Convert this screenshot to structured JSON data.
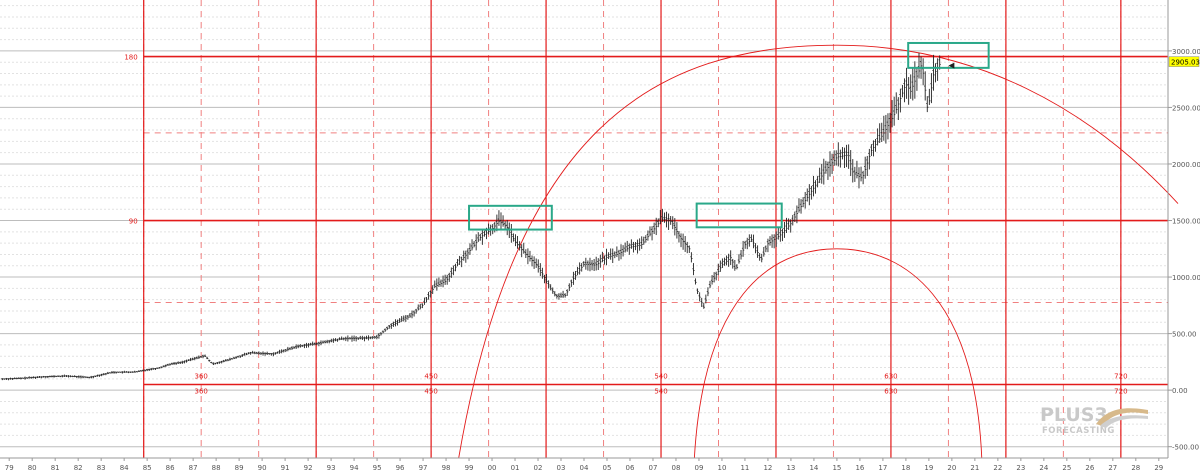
{
  "chart_data": {
    "type": "bar",
    "subtype": "ohlc-price-chart-with-gann-overlay",
    "title": "",
    "xlabel": "",
    "ylabel": "",
    "x_ticks": [
      "79",
      "80",
      "81",
      "82",
      "83",
      "84",
      "85",
      "86",
      "87",
      "88",
      "89",
      "90",
      "91",
      "92",
      "93",
      "94",
      "95",
      "96",
      "97",
      "98",
      "99",
      "00",
      "01",
      "02",
      "03",
      "04",
      "05",
      "06",
      "07",
      "08",
      "09",
      "10",
      "11",
      "12",
      "13",
      "14",
      "15",
      "16",
      "17",
      "18",
      "19",
      "20",
      "21",
      "22",
      "23",
      "24",
      "25",
      "26",
      "27",
      "28",
      "29"
    ],
    "x_range": [
      1978.6,
      2029.4
    ],
    "ylim": [
      -600,
      3450
    ],
    "y_ticks": [
      -500,
      0,
      500,
      1000,
      1500,
      2000,
      2500,
      3000
    ],
    "y_tick_labels": [
      "-500.00",
      "0.00",
      "500.00",
      "1000.00",
      "1500.00",
      "2000.00",
      "2500.00",
      "3000.00"
    ],
    "last_price": 2905.03,
    "last_price_label": "2905.03",
    "price_series": [
      {
        "x": 1978.7,
        "y": 98
      },
      {
        "x": 1979.5,
        "y": 104
      },
      {
        "x": 1980.5,
        "y": 118
      },
      {
        "x": 1981.5,
        "y": 125
      },
      {
        "x": 1982.5,
        "y": 112
      },
      {
        "x": 1983.5,
        "y": 158
      },
      {
        "x": 1984.5,
        "y": 160
      },
      {
        "x": 1985.0,
        "y": 180
      },
      {
        "x": 1985.5,
        "y": 195
      },
      {
        "x": 1986.0,
        "y": 230
      },
      {
        "x": 1986.5,
        "y": 245
      },
      {
        "x": 1987.5,
        "y": 305
      },
      {
        "x": 1987.85,
        "y": 230
      },
      {
        "x": 1988.5,
        "y": 265
      },
      {
        "x": 1989.5,
        "y": 330
      },
      {
        "x": 1990.5,
        "y": 320
      },
      {
        "x": 1991.5,
        "y": 385
      },
      {
        "x": 1992.5,
        "y": 415
      },
      {
        "x": 1993.5,
        "y": 455
      },
      {
        "x": 1994.5,
        "y": 460
      },
      {
        "x": 1995.0,
        "y": 470
      },
      {
        "x": 1995.5,
        "y": 560
      },
      {
        "x": 1996.0,
        "y": 615
      },
      {
        "x": 1996.5,
        "y": 665
      },
      {
        "x": 1997.0,
        "y": 760
      },
      {
        "x": 1997.5,
        "y": 920
      },
      {
        "x": 1998.0,
        "y": 970
      },
      {
        "x": 1998.5,
        "y": 1120
      },
      {
        "x": 1999.0,
        "y": 1230
      },
      {
        "x": 1999.5,
        "y": 1360
      },
      {
        "x": 2000.0,
        "y": 1430
      },
      {
        "x": 2000.3,
        "y": 1500
      },
      {
        "x": 2000.7,
        "y": 1440
      },
      {
        "x": 2001.0,
        "y": 1320
      },
      {
        "x": 2001.5,
        "y": 1200
      },
      {
        "x": 2002.0,
        "y": 1100
      },
      {
        "x": 2002.5,
        "y": 920
      },
      {
        "x": 2002.8,
        "y": 830
      },
      {
        "x": 2003.2,
        "y": 840
      },
      {
        "x": 2003.5,
        "y": 980
      },
      {
        "x": 2004.0,
        "y": 1120
      },
      {
        "x": 2004.5,
        "y": 1110
      },
      {
        "x": 2005.0,
        "y": 1180
      },
      {
        "x": 2005.5,
        "y": 1210
      },
      {
        "x": 2006.0,
        "y": 1270
      },
      {
        "x": 2006.5,
        "y": 1290
      },
      {
        "x": 2007.0,
        "y": 1420
      },
      {
        "x": 2007.4,
        "y": 1520
      },
      {
        "x": 2007.8,
        "y": 1500
      },
      {
        "x": 2008.2,
        "y": 1350
      },
      {
        "x": 2008.6,
        "y": 1250
      },
      {
        "x": 2008.9,
        "y": 900
      },
      {
        "x": 2009.2,
        "y": 730
      },
      {
        "x": 2009.5,
        "y": 940
      },
      {
        "x": 2010.0,
        "y": 1110
      },
      {
        "x": 2010.4,
        "y": 1180
      },
      {
        "x": 2010.6,
        "y": 1060
      },
      {
        "x": 2011.0,
        "y": 1290
      },
      {
        "x": 2011.3,
        "y": 1340
      },
      {
        "x": 2011.7,
        "y": 1150
      },
      {
        "x": 2012.0,
        "y": 1300
      },
      {
        "x": 2012.5,
        "y": 1370
      },
      {
        "x": 2013.0,
        "y": 1480
      },
      {
        "x": 2013.5,
        "y": 1650
      },
      {
        "x": 2014.0,
        "y": 1800
      },
      {
        "x": 2014.5,
        "y": 1950
      },
      {
        "x": 2015.0,
        "y": 2070
      },
      {
        "x": 2015.5,
        "y": 2090
      },
      {
        "x": 2015.7,
        "y": 1930
      },
      {
        "x": 2016.1,
        "y": 1880
      },
      {
        "x": 2016.5,
        "y": 2130
      },
      {
        "x": 2017.0,
        "y": 2270
      },
      {
        "x": 2017.5,
        "y": 2450
      },
      {
        "x": 2018.0,
        "y": 2720
      },
      {
        "x": 2018.2,
        "y": 2650
      },
      {
        "x": 2018.7,
        "y": 2900
      },
      {
        "x": 2018.95,
        "y": 2480
      },
      {
        "x": 2019.2,
        "y": 2800
      },
      {
        "x": 2019.5,
        "y": 2905
      }
    ],
    "gann_levels": [
      {
        "label": "180",
        "y": 2950
      },
      {
        "label": "90",
        "y": 1500
      }
    ],
    "gann_verticals": [
      {
        "x": 1992.35
      },
      {
        "x": 2002.35
      },
      {
        "x": 2012.35
      },
      {
        "x": 2022.35
      }
    ],
    "baseline_y": 50,
    "cycle_labels": [
      {
        "label": "360",
        "x": 1992.35
      },
      {
        "label": "450",
        "x": 2002.35
      },
      {
        "label": "540",
        "x": 2012.35
      },
      {
        "label": "630",
        "x": 2022.35
      },
      {
        "label": "720",
        "x": 2032.35
      }
    ],
    "highlight_boxes": [
      {
        "x0": 1999.0,
        "x1": 2002.6,
        "y0": 1420,
        "y1": 1630
      },
      {
        "x0": 2008.9,
        "x1": 2012.6,
        "y0": 1440,
        "y1": 1650
      },
      {
        "x0": 2018.1,
        "x1": 2021.6,
        "y0": 2850,
        "y1": 3070
      }
    ],
    "grid": true,
    "legend": "none"
  },
  "colors": {
    "price": "#222222",
    "gann": "#e31b1b",
    "dashed": "#f08080",
    "highlight": "#2aa889",
    "grid": "#c8c8c8",
    "last_price_bg": "#ffff00"
  },
  "branding": {
    "logo_main": "PLUS3",
    "logo_sub": "FORECASTING"
  }
}
